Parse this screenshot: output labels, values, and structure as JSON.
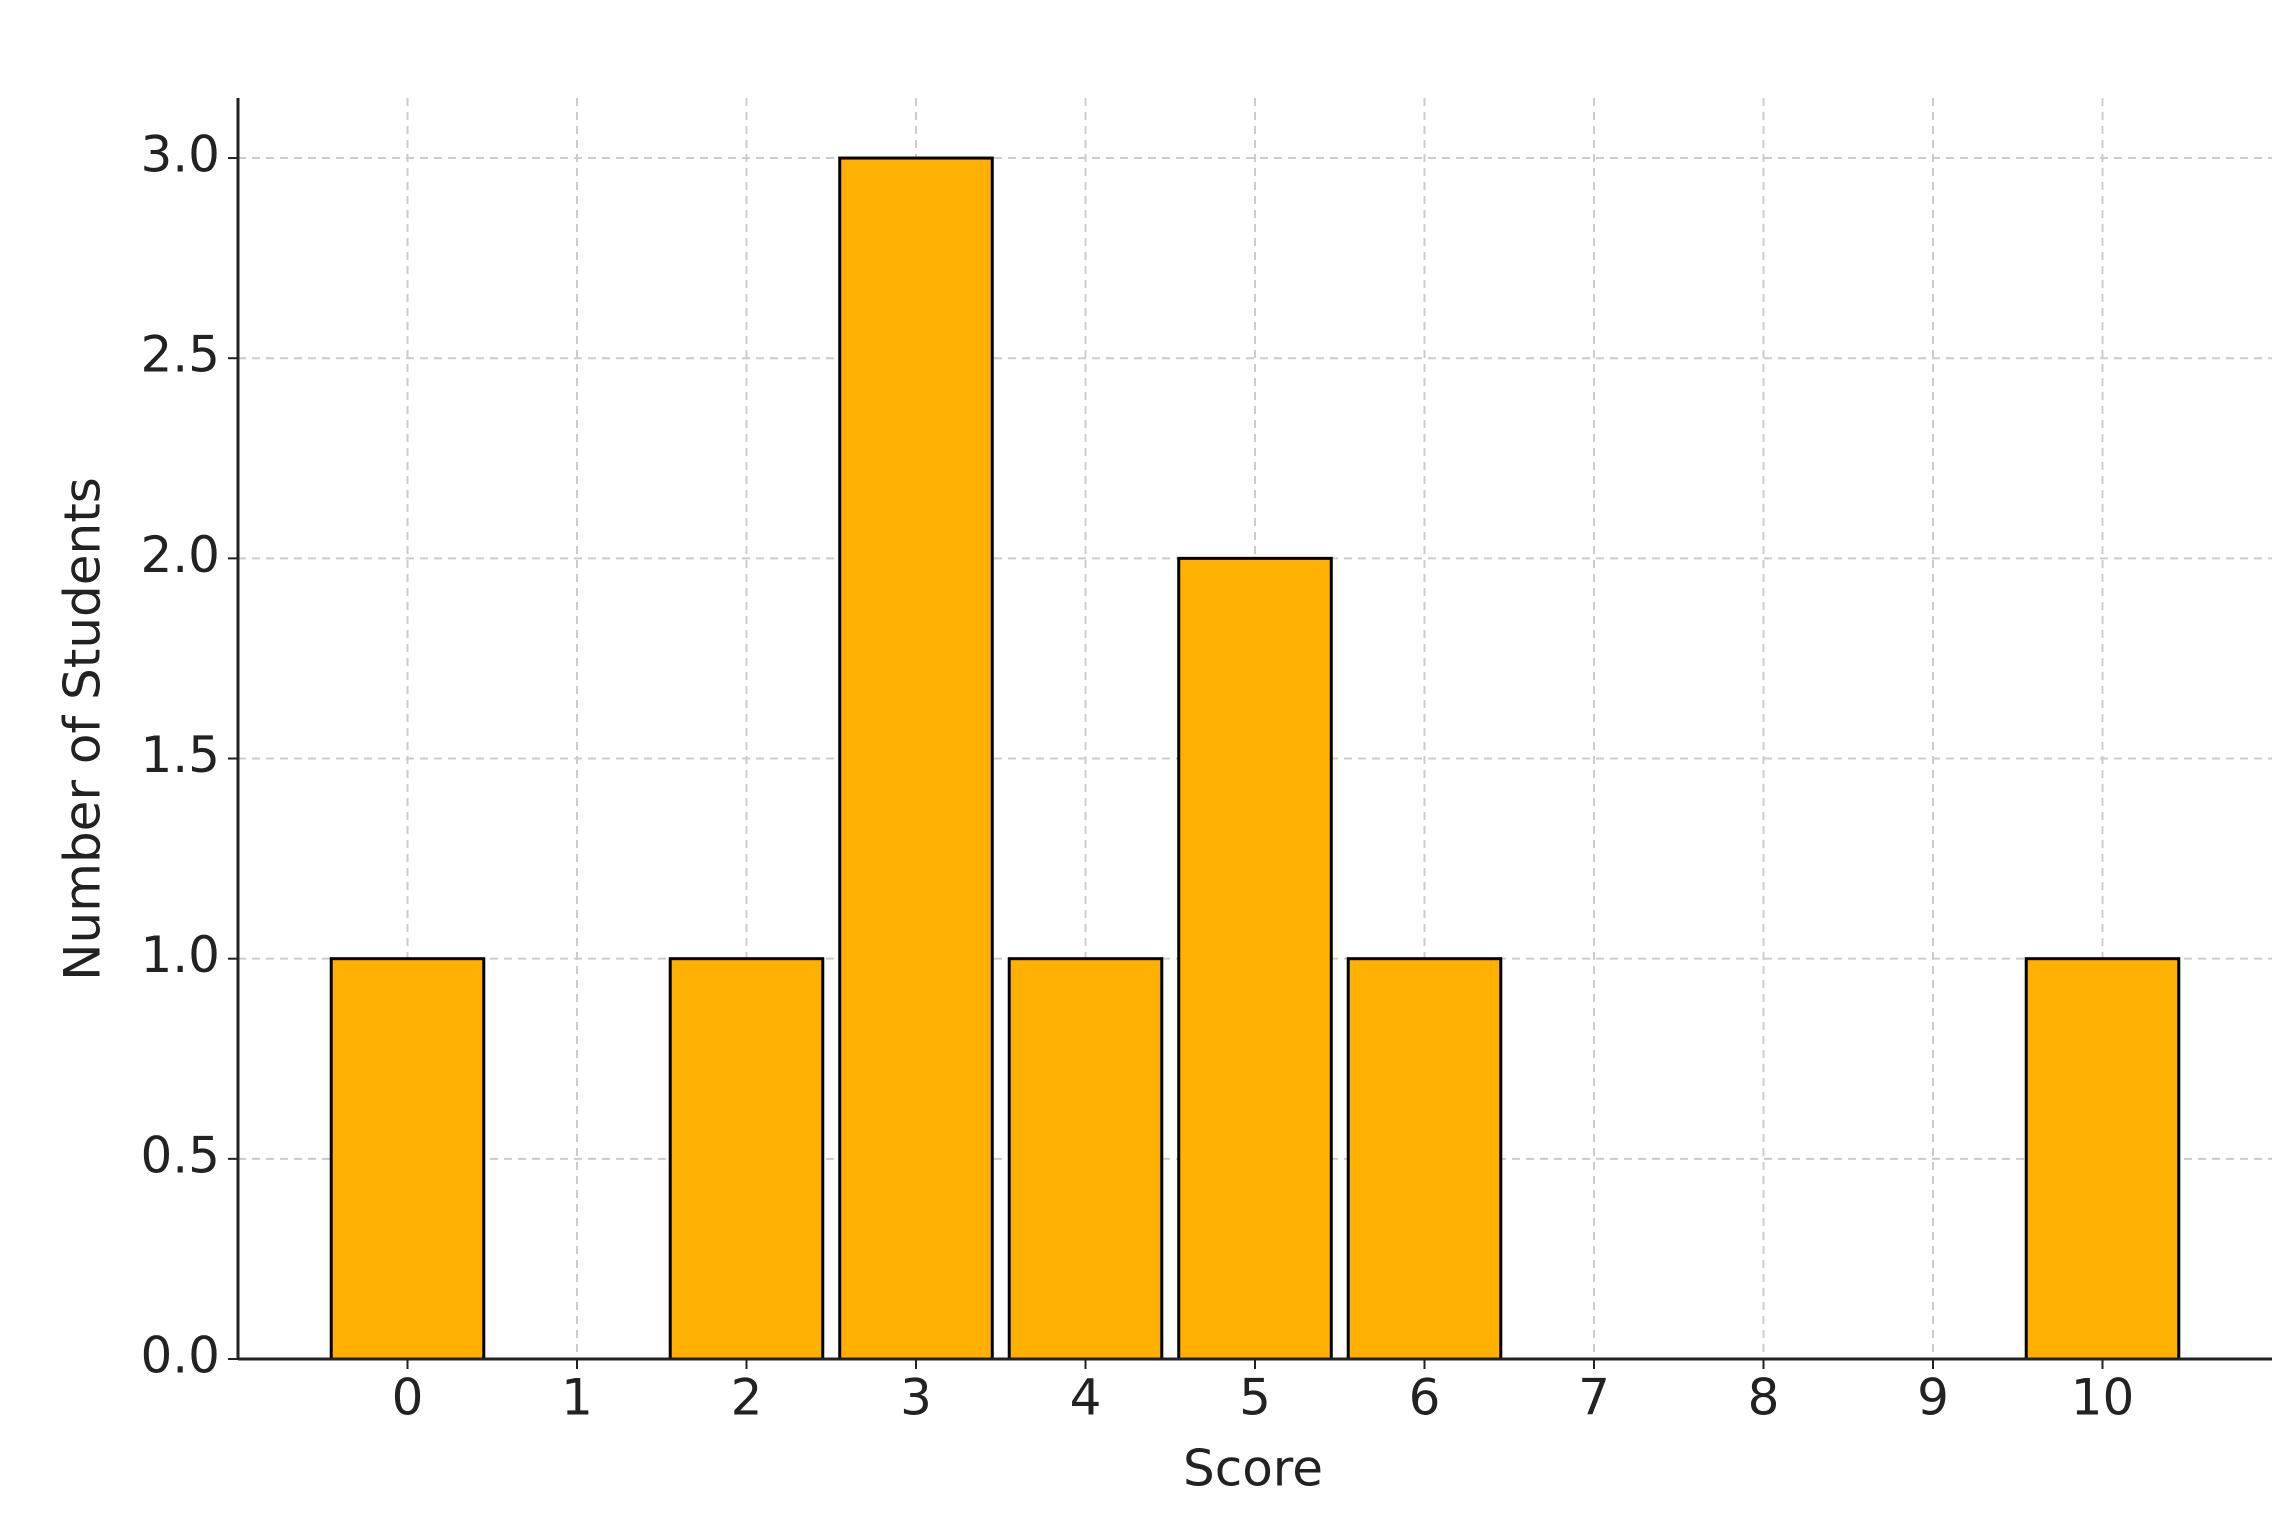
{
  "chart_data": {
    "type": "bar",
    "x_label": "Score",
    "y_label": "Number of Students",
    "x": [
      0,
      2,
      3,
      4,
      5,
      6,
      10
    ],
    "values": [
      1,
      1,
      3,
      1,
      2,
      1,
      1
    ],
    "color": "#ffb000",
    "edge_color": "#000000",
    "xlim": [
      -1,
      11
    ],
    "xticks": [
      0,
      1,
      2,
      3,
      4,
      5,
      6,
      7,
      8,
      9,
      10
    ],
    "ylim": [
      0,
      3.15
    ],
    "yticks": [
      {
        "value": 0,
        "label": "0.0"
      },
      {
        "value": 0.5,
        "label": "0.5"
      },
      {
        "value": 1,
        "label": "1.0"
      },
      {
        "value": 1.5,
        "label": "1.5"
      },
      {
        "value": 2,
        "label": "2.0"
      },
      {
        "value": 2.5,
        "label": "2.5"
      },
      {
        "value": 3,
        "label": "3.0"
      }
    ],
    "grid": true
  }
}
